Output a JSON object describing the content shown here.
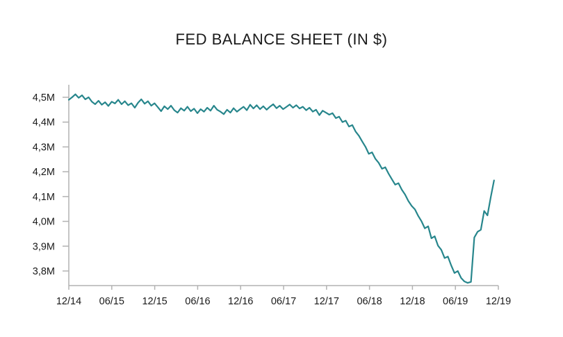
{
  "page": {
    "background_color": "#FFFFFF"
  },
  "chart_data": {
    "type": "line",
    "title": "FED BALANCE SHEET (IN $)",
    "title_color": "#1A1A1A",
    "line_color": "#27868C",
    "axis_color": "#B2B2B2",
    "label_color": "#1A1A1A",
    "grid": false,
    "legend_position": "none",
    "ylim": [
      3.74,
      4.55
    ],
    "y_tick_labels": [
      "4,5M",
      "4,4M",
      "4,3M",
      "4,2M",
      "4,1M",
      "4,0M",
      "3,9M",
      "3,8M"
    ],
    "y_tick_values": [
      4.5,
      4.4,
      4.3,
      4.2,
      4.1,
      4.0,
      3.9,
      3.8
    ],
    "x_ticks": [
      "12/14",
      "06/15",
      "12/15",
      "06/16",
      "12/16",
      "06/17",
      "12/17",
      "06/18",
      "12/18",
      "06/19",
      "12/19"
    ],
    "x_tick_interval_months": 6,
    "series": [
      {
        "x_start_fraction": 0.0,
        "x_end_fraction": 0.99,
        "sampling": "biweekly, Dec 2014 to late Nov 2019, values in millions of $ millions (M)",
        "values": [
          4.49,
          4.5,
          4.512,
          4.498,
          4.508,
          4.492,
          4.5,
          4.482,
          4.472,
          4.486,
          4.47,
          4.48,
          4.465,
          4.482,
          4.475,
          4.49,
          4.472,
          4.484,
          4.468,
          4.476,
          4.458,
          4.478,
          4.492,
          4.474,
          4.484,
          4.466,
          4.476,
          4.46,
          4.444,
          4.464,
          4.452,
          4.466,
          4.448,
          4.438,
          4.456,
          4.446,
          4.462,
          4.444,
          4.454,
          4.436,
          4.452,
          4.442,
          4.458,
          4.446,
          4.466,
          4.45,
          4.442,
          4.432,
          4.45,
          4.438,
          4.456,
          4.442,
          4.452,
          4.462,
          4.448,
          4.47,
          4.455,
          4.468,
          4.452,
          4.464,
          4.45,
          4.462,
          4.472,
          4.456,
          4.466,
          4.452,
          4.461,
          4.471,
          4.458,
          4.468,
          4.455,
          4.462,
          4.448,
          4.458,
          4.442,
          4.45,
          4.428,
          4.446,
          4.438,
          4.43,
          4.436,
          4.416,
          4.422,
          4.4,
          4.406,
          4.382,
          4.388,
          4.362,
          4.345,
          4.322,
          4.3,
          4.272,
          4.278,
          4.252,
          4.236,
          4.212,
          4.218,
          4.192,
          4.17,
          4.148,
          4.154,
          4.128,
          4.108,
          4.082,
          4.062,
          4.048,
          4.022,
          4.0,
          3.972,
          3.98,
          3.932,
          3.94,
          3.902,
          3.885,
          3.852,
          3.858,
          3.822,
          3.792,
          3.8,
          3.772,
          3.758,
          3.752,
          3.756,
          3.935,
          3.958,
          3.966,
          4.042,
          4.024,
          4.098,
          4.165
        ]
      }
    ]
  }
}
